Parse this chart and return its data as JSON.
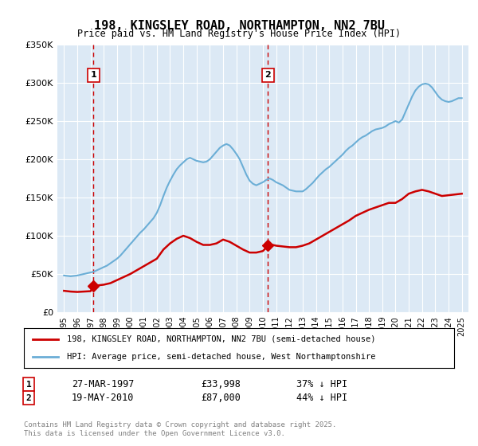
{
  "title": "198, KINGSLEY ROAD, NORTHAMPTON, NN2 7BU",
  "subtitle": "Price paid vs. HM Land Registry's House Price Index (HPI)",
  "background_color": "#dce9f5",
  "plot_bg_color": "#dce9f5",
  "ylim": [
    0,
    350000
  ],
  "yticks": [
    0,
    50000,
    100000,
    150000,
    200000,
    250000,
    300000,
    350000
  ],
  "ytick_labels": [
    "£0",
    "£50K",
    "£100K",
    "£150K",
    "£200K",
    "£250K",
    "£300K",
    "£350K"
  ],
  "xlim_start": 1994.5,
  "xlim_end": 2025.5,
  "sale1_year": 1997.23,
  "sale1_price": 33998,
  "sale1_label": "1",
  "sale1_date": "27-MAR-1997",
  "sale1_hpi_diff": "37% ↓ HPI",
  "sale2_year": 2010.38,
  "sale2_price": 87000,
  "sale2_label": "2",
  "sale2_date": "19-MAY-2010",
  "sale2_hpi_diff": "44% ↓ HPI",
  "legend_line1": "198, KINGSLEY ROAD, NORTHAMPTON, NN2 7BU (semi-detached house)",
  "legend_line2": "HPI: Average price, semi-detached house, West Northamptonshire",
  "footer": "Contains HM Land Registry data © Crown copyright and database right 2025.\nThis data is licensed under the Open Government Licence v3.0.",
  "red_color": "#cc0000",
  "blue_color": "#6baed6",
  "grid_color": "#ffffff",
  "hpi_data_x": [
    1995.0,
    1995.25,
    1995.5,
    1995.75,
    1996.0,
    1996.25,
    1996.5,
    1996.75,
    1997.0,
    1997.25,
    1997.5,
    1997.75,
    1998.0,
    1998.25,
    1998.5,
    1998.75,
    1999.0,
    1999.25,
    1999.5,
    1999.75,
    2000.0,
    2000.25,
    2000.5,
    2000.75,
    2001.0,
    2001.25,
    2001.5,
    2001.75,
    2002.0,
    2002.25,
    2002.5,
    2002.75,
    2003.0,
    2003.25,
    2003.5,
    2003.75,
    2004.0,
    2004.25,
    2004.5,
    2004.75,
    2005.0,
    2005.25,
    2005.5,
    2005.75,
    2006.0,
    2006.25,
    2006.5,
    2006.75,
    2007.0,
    2007.25,
    2007.5,
    2007.75,
    2008.0,
    2008.25,
    2008.5,
    2008.75,
    2009.0,
    2009.25,
    2009.5,
    2009.75,
    2010.0,
    2010.25,
    2010.5,
    2010.75,
    2011.0,
    2011.25,
    2011.5,
    2011.75,
    2012.0,
    2012.25,
    2012.5,
    2012.75,
    2013.0,
    2013.25,
    2013.5,
    2013.75,
    2014.0,
    2014.25,
    2014.5,
    2014.75,
    2015.0,
    2015.25,
    2015.5,
    2015.75,
    2016.0,
    2016.25,
    2016.5,
    2016.75,
    2017.0,
    2017.25,
    2017.5,
    2017.75,
    2018.0,
    2018.25,
    2018.5,
    2018.75,
    2019.0,
    2019.25,
    2019.5,
    2019.75,
    2020.0,
    2020.25,
    2020.5,
    2020.75,
    2021.0,
    2021.25,
    2021.5,
    2021.75,
    2022.0,
    2022.25,
    2022.5,
    2022.75,
    2023.0,
    2023.25,
    2023.5,
    2023.75,
    2024.0,
    2024.25,
    2024.5,
    2024.75,
    2025.0
  ],
  "hpi_data_y": [
    48000,
    47500,
    47000,
    47500,
    48000,
    49000,
    50000,
    51000,
    52000,
    53000,
    55000,
    57000,
    59000,
    61000,
    64000,
    67000,
    70000,
    74000,
    79000,
    84000,
    89000,
    94000,
    99000,
    104000,
    108000,
    113000,
    118000,
    123000,
    130000,
    140000,
    152000,
    163000,
    172000,
    180000,
    187000,
    192000,
    196000,
    200000,
    202000,
    200000,
    198000,
    197000,
    196000,
    197000,
    200000,
    205000,
    210000,
    215000,
    218000,
    220000,
    218000,
    213000,
    207000,
    200000,
    190000,
    180000,
    172000,
    168000,
    166000,
    168000,
    170000,
    173000,
    175000,
    173000,
    170000,
    168000,
    166000,
    163000,
    160000,
    159000,
    158000,
    158000,
    158000,
    161000,
    165000,
    169000,
    174000,
    179000,
    183000,
    187000,
    190000,
    194000,
    198000,
    202000,
    206000,
    211000,
    215000,
    218000,
    222000,
    226000,
    229000,
    231000,
    234000,
    237000,
    239000,
    240000,
    241000,
    243000,
    246000,
    248000,
    250000,
    248000,
    252000,
    262000,
    272000,
    282000,
    290000,
    295000,
    298000,
    299000,
    298000,
    294000,
    288000,
    282000,
    278000,
    276000,
    275000,
    276000,
    278000,
    280000,
    280000
  ],
  "price_data_x": [
    1995.0,
    1995.5,
    1996.0,
    1996.5,
    1997.0,
    1997.23,
    1997.5,
    1998.0,
    1998.5,
    1999.0,
    1999.5,
    2000.0,
    2000.5,
    2001.0,
    2001.5,
    2002.0,
    2002.5,
    2003.0,
    2003.5,
    2004.0,
    2004.5,
    2005.0,
    2005.5,
    2006.0,
    2006.5,
    2007.0,
    2007.5,
    2008.0,
    2008.5,
    2009.0,
    2009.5,
    2010.0,
    2010.38,
    2010.75,
    2011.0,
    2011.5,
    2012.0,
    2012.5,
    2013.0,
    2013.5,
    2014.0,
    2014.5,
    2015.0,
    2015.5,
    2016.0,
    2016.5,
    2017.0,
    2017.5,
    2018.0,
    2018.5,
    2019.0,
    2019.5,
    2020.0,
    2020.5,
    2021.0,
    2021.5,
    2022.0,
    2022.5,
    2023.0,
    2023.5,
    2024.0,
    2024.5,
    2025.0
  ],
  "price_data_y": [
    28000,
    27000,
    26500,
    27000,
    27500,
    33998,
    35000,
    36000,
    38000,
    42000,
    46000,
    50000,
    55000,
    60000,
    65000,
    70000,
    82000,
    90000,
    96000,
    100000,
    97000,
    92000,
    88000,
    88000,
    90000,
    95000,
    92000,
    87000,
    82000,
    78000,
    78000,
    80000,
    87000,
    88000,
    87000,
    86000,
    85000,
    85000,
    87000,
    90000,
    95000,
    100000,
    105000,
    110000,
    115000,
    120000,
    126000,
    130000,
    134000,
    137000,
    140000,
    143000,
    143000,
    148000,
    155000,
    158000,
    160000,
    158000,
    155000,
    152000,
    153000,
    154000,
    155000
  ]
}
